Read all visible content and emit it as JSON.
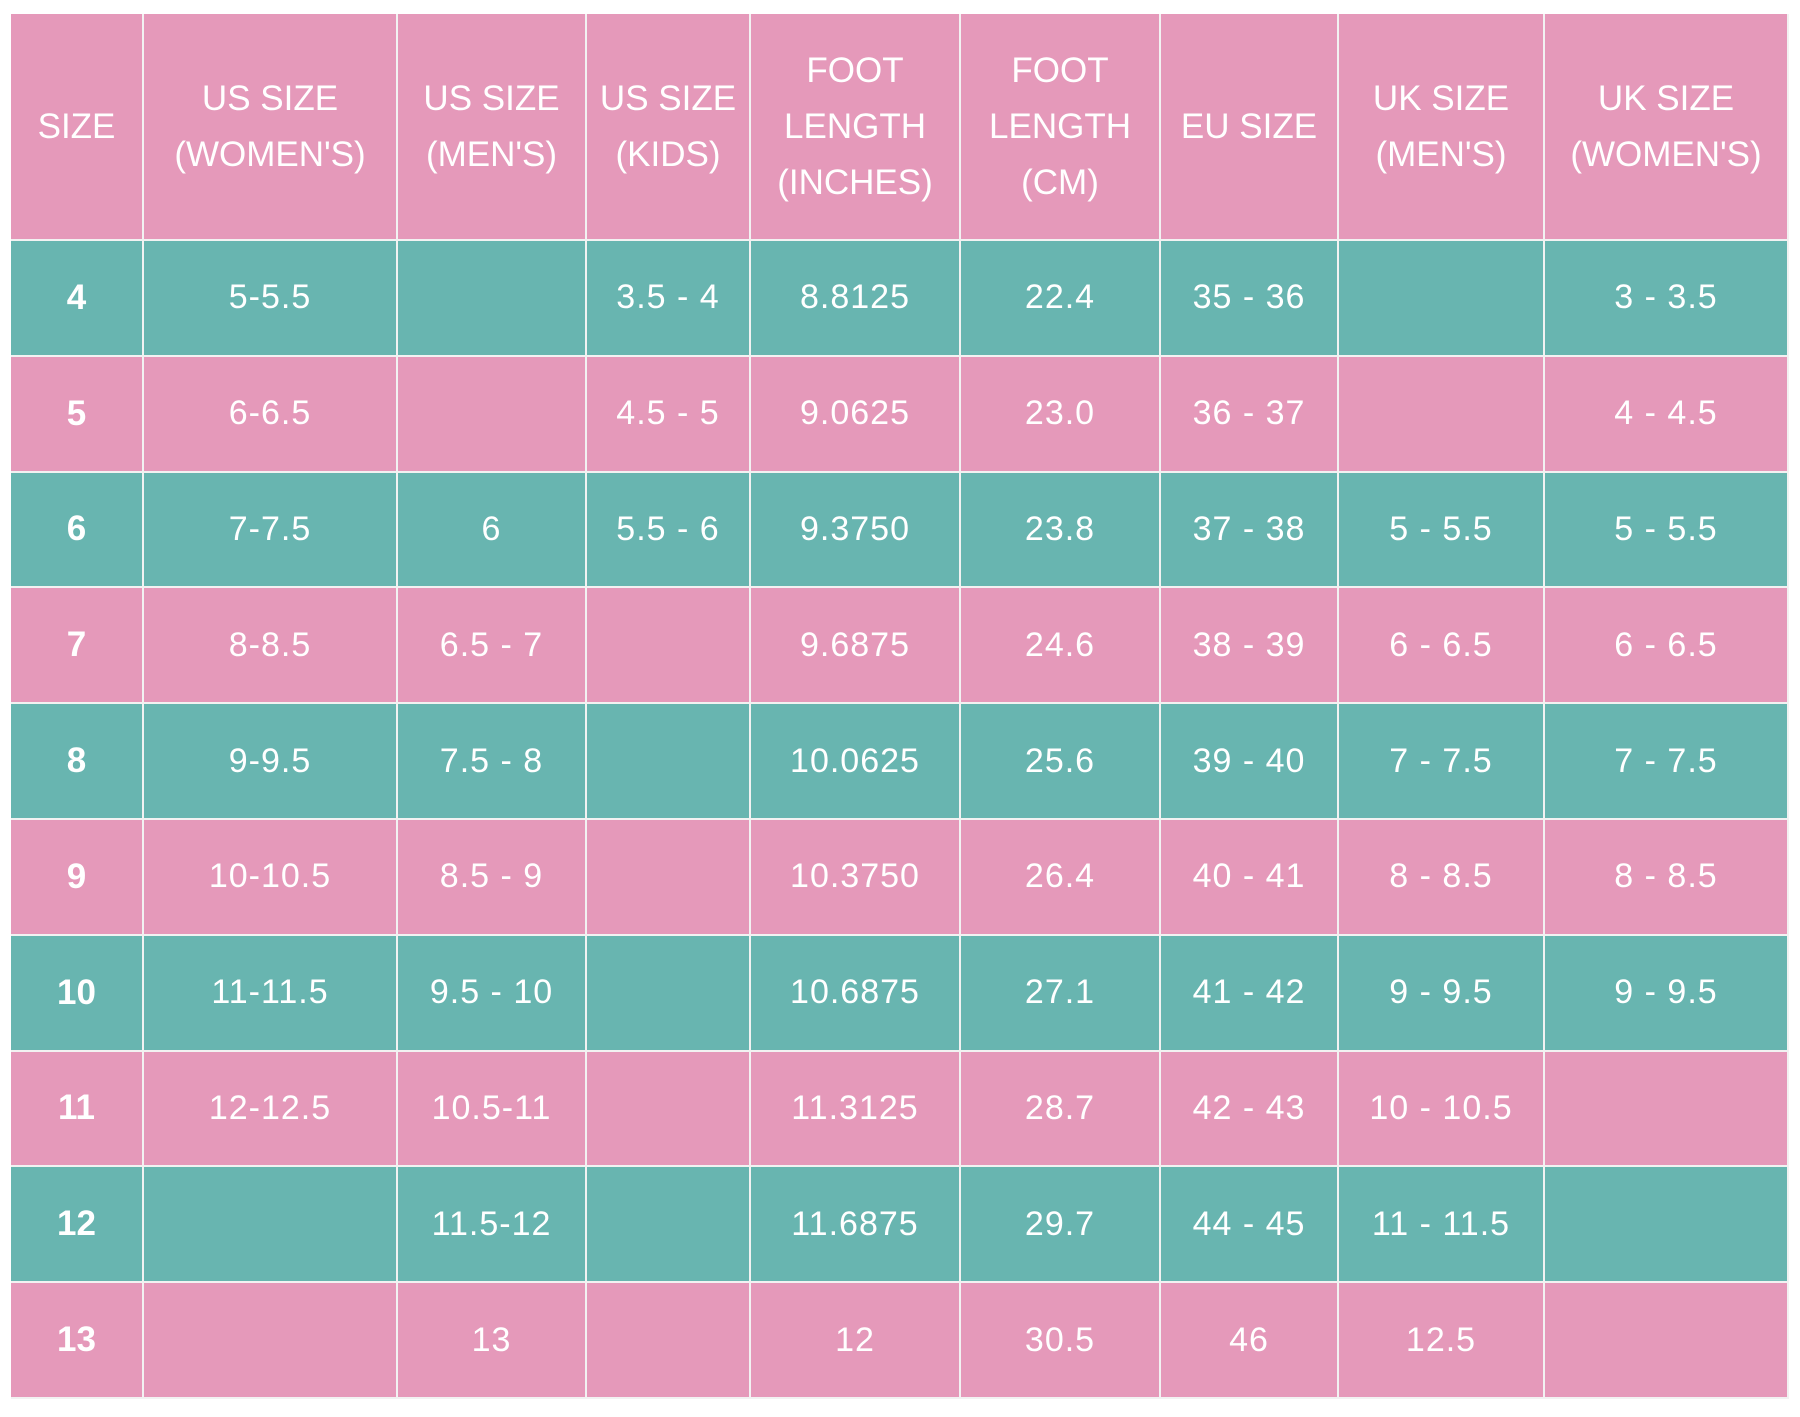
{
  "table": {
    "header": [
      "SIZE",
      "US SIZE (WOMEN'S)",
      "US SIZE (MEN'S)",
      "US SIZE (KIDS)",
      "FOOT LENGTH (INCHES)",
      "FOOT LENGTH (CM)",
      "EU SIZE",
      "UK SIZE (MEN'S)",
      "UK SIZE (WOMEN'S)"
    ],
    "rows": [
      [
        "4",
        "5-5.5",
        null,
        "3.5 - 4",
        "8.8125",
        "22.4",
        "35 - 36",
        null,
        "3 - 3.5"
      ],
      [
        "5",
        "6-6.5",
        null,
        "4.5 - 5",
        "9.0625",
        "23.0",
        "36 - 37",
        null,
        "4 - 4.5"
      ],
      [
        "6",
        "7-7.5",
        "6",
        "5.5 - 6",
        "9.3750",
        "23.8",
        "37 - 38",
        "5 - 5.5",
        "5 - 5.5"
      ],
      [
        "7",
        "8-8.5",
        "6.5 - 7",
        null,
        "9.6875",
        "24.6",
        "38 - 39",
        "6 - 6.5",
        "6 - 6.5"
      ],
      [
        "8",
        "9-9.5",
        "7.5 - 8",
        null,
        "10.0625",
        "25.6",
        "39 - 40",
        "7 - 7.5",
        "7 - 7.5"
      ],
      [
        "9",
        "10-10.5",
        "8.5 - 9",
        null,
        "10.3750",
        "26.4",
        "40 - 41",
        "8 - 8.5",
        "8 - 8.5"
      ],
      [
        "10",
        "11-11.5",
        "9.5 - 10",
        null,
        "10.6875",
        "27.1",
        "41 - 42",
        "9 - 9.5",
        "9 - 9.5"
      ],
      [
        "11",
        "12-12.5",
        "10.5-11",
        null,
        "11.3125",
        "28.7",
        "42 - 43",
        "10 - 10.5",
        null
      ],
      [
        "12",
        null,
        "11.5-12",
        null,
        "11.6875",
        "29.7",
        "44 - 45",
        "11 - 11.5",
        null
      ],
      [
        "13",
        null,
        "13",
        null,
        "12",
        "30.5",
        "46",
        "12.5",
        null
      ]
    ]
  }
}
